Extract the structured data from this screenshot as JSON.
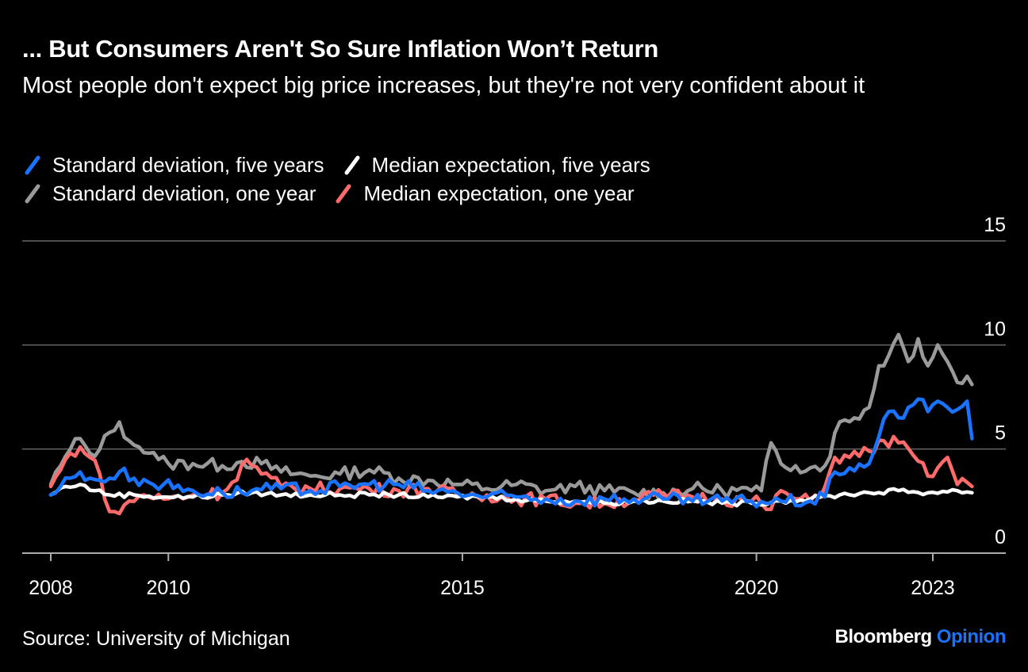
{
  "header": {
    "title": "... But Consumers Aren't So Sure Inflation Won’t Return",
    "subtitle": "Most people don't expect big price increases, but they're not very confident about it"
  },
  "footer": {
    "source": "Source: University of Michigan",
    "brand_main": "Bloomberg",
    "brand_accent": "Opinion"
  },
  "chart_data": {
    "type": "line",
    "title": "... But Consumers Aren't So Sure Inflation Won’t Return",
    "subtitle": "Most people don't expect big price increases, but they're not very confident about it",
    "x_start": "2008-01",
    "x_end": "2023-01",
    "x_frequency": "monthly (values read at monthly intervals, smoothed estimate)",
    "xlim": [
      "2007-07",
      "2024-01"
    ],
    "x_ticks": [
      "2008",
      "2010",
      "2015",
      "2020",
      "2023"
    ],
    "ylim": [
      0,
      15
    ],
    "y_ticks": [
      0,
      5,
      10,
      15
    ],
    "grid": "horizontal",
    "legend_position": "top-left",
    "series": [
      {
        "name": "Standard deviation, one year",
        "color": "#9a9a9a",
        "anchors": [
          [
            "2008-01",
            3.3
          ],
          [
            "2008-03",
            4.2
          ],
          [
            "2008-05",
            5.0
          ],
          [
            "2008-07",
            5.5
          ],
          [
            "2008-09",
            4.8
          ],
          [
            "2008-11",
            5.0
          ],
          [
            "2009-01",
            5.8
          ],
          [
            "2009-03",
            6.3
          ],
          [
            "2009-05",
            5.4
          ],
          [
            "2009-07",
            5.1
          ],
          [
            "2009-09",
            4.8
          ],
          [
            "2009-11",
            4.5
          ],
          [
            "2010-01",
            4.3
          ],
          [
            "2010-06",
            4.3
          ],
          [
            "2010-12",
            4.2
          ],
          [
            "2011-04",
            4.4
          ],
          [
            "2011-08",
            4.3
          ],
          [
            "2011-12",
            3.9
          ],
          [
            "2012-06",
            3.7
          ],
          [
            "2012-12",
            3.8
          ],
          [
            "2013-06",
            4.0
          ],
          [
            "2013-12",
            3.6
          ],
          [
            "2014-06",
            3.5
          ],
          [
            "2014-12",
            3.3
          ],
          [
            "2015-06",
            3.1
          ],
          [
            "2015-12",
            3.3
          ],
          [
            "2016-06",
            3.0
          ],
          [
            "2016-12",
            3.2
          ],
          [
            "2017-06",
            3.0
          ],
          [
            "2017-12",
            2.9
          ],
          [
            "2018-06",
            2.9
          ],
          [
            "2018-12",
            3.1
          ],
          [
            "2019-06",
            3.0
          ],
          [
            "2019-12",
            3.0
          ],
          [
            "2020-02",
            3.0
          ],
          [
            "2020-04",
            5.3
          ],
          [
            "2020-06",
            4.3
          ],
          [
            "2020-09",
            4.2
          ],
          [
            "2020-12",
            4.1
          ],
          [
            "2021-03",
            4.2
          ],
          [
            "2021-06",
            6.3
          ],
          [
            "2021-09",
            6.5
          ],
          [
            "2021-12",
            7.0
          ],
          [
            "2022-02",
            9.0
          ],
          [
            "2022-04",
            9.5
          ],
          [
            "2022-06",
            10.5
          ],
          [
            "2022-08",
            9.2
          ],
          [
            "2022-10",
            10.3
          ],
          [
            "2022-12",
            9.0
          ],
          [
            "2023-02",
            10.0
          ],
          [
            "2023-04",
            9.2
          ],
          [
            "2023-06",
            8.2
          ],
          [
            "2023-08",
            8.5
          ],
          [
            "2023-09",
            8.1
          ]
        ]
      },
      {
        "name": "Median expectation, one year",
        "color": "#ff6b6b",
        "anchors": [
          [
            "2008-01",
            3.2
          ],
          [
            "2008-03",
            4.0
          ],
          [
            "2008-05",
            4.8
          ],
          [
            "2008-07",
            5.1
          ],
          [
            "2008-09",
            4.6
          ],
          [
            "2008-11",
            3.8
          ],
          [
            "2009-01",
            2.0
          ],
          [
            "2009-03",
            1.9
          ],
          [
            "2009-05",
            2.5
          ],
          [
            "2009-08",
            2.8
          ],
          [
            "2009-12",
            2.6
          ],
          [
            "2010-06",
            2.8
          ],
          [
            "2010-12",
            2.9
          ],
          [
            "2011-02",
            3.4
          ],
          [
            "2011-05",
            4.5
          ],
          [
            "2011-08",
            3.8
          ],
          [
            "2011-12",
            3.2
          ],
          [
            "2012-06",
            3.1
          ],
          [
            "2012-12",
            3.1
          ],
          [
            "2013-06",
            3.1
          ],
          [
            "2013-12",
            3.0
          ],
          [
            "2014-06",
            3.1
          ],
          [
            "2014-12",
            2.8
          ],
          [
            "2015-06",
            2.8
          ],
          [
            "2015-12",
            2.6
          ],
          [
            "2016-06",
            2.6
          ],
          [
            "2016-12",
            2.4
          ],
          [
            "2017-06",
            2.4
          ],
          [
            "2017-12",
            2.6
          ],
          [
            "2018-06",
            2.8
          ],
          [
            "2018-12",
            2.7
          ],
          [
            "2019-06",
            2.6
          ],
          [
            "2019-12",
            2.5
          ],
          [
            "2020-02",
            2.4
          ],
          [
            "2020-04",
            2.1
          ],
          [
            "2020-06",
            3.0
          ],
          [
            "2020-09",
            2.6
          ],
          [
            "2020-12",
            2.5
          ],
          [
            "2021-03",
            3.2
          ],
          [
            "2021-05",
            4.6
          ],
          [
            "2021-08",
            4.6
          ],
          [
            "2021-12",
            4.9
          ],
          [
            "2022-03",
            5.4
          ],
          [
            "2022-06",
            5.3
          ],
          [
            "2022-09",
            4.7
          ],
          [
            "2022-12",
            3.7
          ],
          [
            "2023-02",
            4.1
          ],
          [
            "2023-04",
            4.6
          ],
          [
            "2023-06",
            3.3
          ],
          [
            "2023-08",
            3.4
          ],
          [
            "2023-09",
            3.2
          ]
        ]
      },
      {
        "name": "Median expectation, five years",
        "color": "#ffffff",
        "anchors": [
          [
            "2008-01",
            2.8
          ],
          [
            "2008-04",
            3.2
          ],
          [
            "2008-07",
            3.3
          ],
          [
            "2008-10",
            3.0
          ],
          [
            "2009-01",
            2.8
          ],
          [
            "2009-06",
            2.8
          ],
          [
            "2009-12",
            2.7
          ],
          [
            "2010-06",
            2.7
          ],
          [
            "2010-12",
            2.8
          ],
          [
            "2011-06",
            2.9
          ],
          [
            "2011-12",
            2.8
          ],
          [
            "2012-06",
            2.8
          ],
          [
            "2012-12",
            2.8
          ],
          [
            "2013-06",
            2.8
          ],
          [
            "2013-12",
            2.8
          ],
          [
            "2014-06",
            2.7
          ],
          [
            "2014-12",
            2.7
          ],
          [
            "2015-06",
            2.7
          ],
          [
            "2015-12",
            2.6
          ],
          [
            "2016-06",
            2.5
          ],
          [
            "2016-12",
            2.5
          ],
          [
            "2017-06",
            2.4
          ],
          [
            "2017-12",
            2.5
          ],
          [
            "2018-06",
            2.5
          ],
          [
            "2018-12",
            2.5
          ],
          [
            "2019-06",
            2.4
          ],
          [
            "2019-12",
            2.4
          ],
          [
            "2020-06",
            2.5
          ],
          [
            "2020-12",
            2.6
          ],
          [
            "2021-06",
            2.8
          ],
          [
            "2021-12",
            2.9
          ],
          [
            "2022-06",
            3.0
          ],
          [
            "2022-12",
            2.9
          ],
          [
            "2023-06",
            3.0
          ],
          [
            "2023-09",
            2.9
          ]
        ]
      },
      {
        "name": "Standard deviation, five years",
        "color": "#1a73ff",
        "anchors": [
          [
            "2008-01",
            2.8
          ],
          [
            "2008-03",
            3.2
          ],
          [
            "2008-05",
            3.6
          ],
          [
            "2008-07",
            3.9
          ],
          [
            "2008-09",
            3.6
          ],
          [
            "2008-11",
            3.5
          ],
          [
            "2009-01",
            3.6
          ],
          [
            "2009-03",
            3.9
          ],
          [
            "2009-06",
            3.6
          ],
          [
            "2009-09",
            3.4
          ],
          [
            "2009-12",
            3.3
          ],
          [
            "2010-06",
            3.0
          ],
          [
            "2010-12",
            2.9
          ],
          [
            "2011-06",
            3.0
          ],
          [
            "2011-12",
            3.1
          ],
          [
            "2012-06",
            3.0
          ],
          [
            "2012-12",
            3.2
          ],
          [
            "2013-06",
            3.3
          ],
          [
            "2013-12",
            3.3
          ],
          [
            "2014-06",
            3.0
          ],
          [
            "2014-12",
            2.9
          ],
          [
            "2015-06",
            2.7
          ],
          [
            "2015-12",
            2.7
          ],
          [
            "2016-06",
            2.6
          ],
          [
            "2016-12",
            2.5
          ],
          [
            "2017-06",
            2.6
          ],
          [
            "2017-12",
            2.6
          ],
          [
            "2018-06",
            2.6
          ],
          [
            "2018-12",
            2.5
          ],
          [
            "2019-06",
            2.5
          ],
          [
            "2019-12",
            2.5
          ],
          [
            "2020-06",
            2.5
          ],
          [
            "2020-12",
            2.5
          ],
          [
            "2021-03",
            2.7
          ],
          [
            "2021-05",
            3.9
          ],
          [
            "2021-08",
            4.1
          ],
          [
            "2021-12",
            4.3
          ],
          [
            "2022-02",
            5.6
          ],
          [
            "2022-04",
            6.8
          ],
          [
            "2022-06",
            6.5
          ],
          [
            "2022-08",
            7.0
          ],
          [
            "2022-10",
            7.4
          ],
          [
            "2022-12",
            6.8
          ],
          [
            "2023-02",
            7.3
          ],
          [
            "2023-04",
            7.0
          ],
          [
            "2023-06",
            6.9
          ],
          [
            "2023-08",
            7.3
          ],
          [
            "2023-09",
            5.5
          ]
        ]
      }
    ]
  },
  "legend": [
    {
      "label": "Standard deviation, five years",
      "color": "#1a73ff"
    },
    {
      "label": "Median expectation, five years",
      "color": "#ffffff"
    },
    {
      "label": "Standard deviation, one year",
      "color": "#9a9a9a"
    },
    {
      "label": "Median expectation, one year",
      "color": "#ff6b6b"
    }
  ],
  "colors": {
    "background": "#000000",
    "grid": "#666666",
    "text": "#ffffff",
    "brand_accent": "#1a73ff"
  }
}
